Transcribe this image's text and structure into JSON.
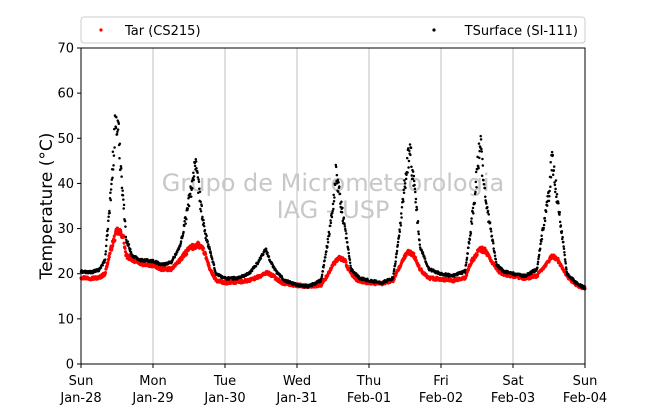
{
  "chart_data": {
    "type": "scatter",
    "title": "",
    "xlabel": "",
    "ylabel": "Temperature (°C)",
    "ylim": [
      0,
      70
    ],
    "yticks": [
      0,
      10,
      20,
      30,
      40,
      50,
      60,
      70
    ],
    "xlim": [
      "2018-01-28 00:00",
      "2018-02-04 00:00"
    ],
    "xticks": [
      {
        "weekday": "Sun",
        "date": "Jan-28"
      },
      {
        "weekday": "Mon",
        "date": "Jan-29"
      },
      {
        "weekday": "Tue",
        "date": "Jan-30"
      },
      {
        "weekday": "Wed",
        "date": "Jan-31"
      },
      {
        "weekday": "Thu",
        "date": "Feb-01"
      },
      {
        "weekday": "Fri",
        "date": "Feb-02"
      },
      {
        "weekday": "Sat",
        "date": "Feb-03"
      },
      {
        "weekday": "Sun",
        "date": "Feb-04"
      }
    ],
    "grid": "vertical",
    "legend_position": "top",
    "watermark": [
      "Grupo de Micrometeorologia",
      "IAG - USP"
    ],
    "series": [
      {
        "name": "Tar (CS215)",
        "color": "#ff0000",
        "points": [
          [
            "2018-01-28 00:00",
            19.2
          ],
          [
            "2018-01-28 03:00",
            19.0
          ],
          [
            "2018-01-28 06:00",
            19.1
          ],
          [
            "2018-01-28 08:00",
            20.0
          ],
          [
            "2018-01-28 10:00",
            25.5
          ],
          [
            "2018-01-28 12:00",
            29.5
          ],
          [
            "2018-01-28 14:00",
            28.5
          ],
          [
            "2018-01-28 15:00",
            24.0
          ],
          [
            "2018-01-28 18:00",
            22.8
          ],
          [
            "2018-01-28 21:00",
            22.0
          ],
          [
            "2018-01-29 00:00",
            21.8
          ],
          [
            "2018-01-29 03:00",
            21.0
          ],
          [
            "2018-01-29 06:00",
            21.0
          ],
          [
            "2018-01-29 09:00",
            23.0
          ],
          [
            "2018-01-29 12:00",
            25.5
          ],
          [
            "2018-01-29 15:00",
            26.5
          ],
          [
            "2018-01-29 17:00",
            25.0
          ],
          [
            "2018-01-29 19:00",
            21.0
          ],
          [
            "2018-01-29 21:00",
            18.5
          ],
          [
            "2018-01-30 00:00",
            18.0
          ],
          [
            "2018-01-30 04:00",
            18.2
          ],
          [
            "2018-01-30 08:00",
            18.5
          ],
          [
            "2018-01-30 12:00",
            19.5
          ],
          [
            "2018-01-30 14:00",
            20.3
          ],
          [
            "2018-01-30 16:00",
            19.5
          ],
          [
            "2018-01-30 19:00",
            18.0
          ],
          [
            "2018-01-30 23:00",
            17.5
          ],
          [
            "2018-01-31 04:00",
            17.2
          ],
          [
            "2018-01-31 08:00",
            17.5
          ],
          [
            "2018-01-31 10:00",
            19.5
          ],
          [
            "2018-01-31 12:00",
            22.0
          ],
          [
            "2018-01-31 14:00",
            23.5
          ],
          [
            "2018-01-31 16:00",
            23.0
          ],
          [
            "2018-01-31 17:00",
            21.0
          ],
          [
            "2018-01-31 20:00",
            18.5
          ],
          [
            "2018-02-01 00:00",
            18.0
          ],
          [
            "2018-02-01 04:00",
            17.8
          ],
          [
            "2018-02-01 08:00",
            18.5
          ],
          [
            "2018-02-01 11:00",
            22.5
          ],
          [
            "2018-02-01 13:00",
            25.0
          ],
          [
            "2018-02-01 15:00",
            24.0
          ],
          [
            "2018-02-01 17:00",
            21.0
          ],
          [
            "2018-02-01 20:00",
            19.0
          ],
          [
            "2018-02-02 00:00",
            18.8
          ],
          [
            "2018-02-02 04:00",
            18.5
          ],
          [
            "2018-02-02 08:00",
            19.0
          ],
          [
            "2018-02-02 10:00",
            22.5
          ],
          [
            "2018-02-02 13:00",
            25.5
          ],
          [
            "2018-02-02 15:00",
            25.0
          ],
          [
            "2018-02-02 17:00",
            22.5
          ],
          [
            "2018-02-02 20:00",
            20.0
          ],
          [
            "2018-02-03 00:00",
            19.5
          ],
          [
            "2018-02-03 04:00",
            19.0
          ],
          [
            "2018-02-03 08:00",
            19.5
          ],
          [
            "2018-02-03 11:00",
            22.0
          ],
          [
            "2018-02-03 13:00",
            24.0
          ],
          [
            "2018-02-03 15:00",
            23.0
          ],
          [
            "2018-02-03 18:00",
            19.5
          ],
          [
            "2018-02-03 21:00",
            17.5
          ],
          [
            "2018-02-04 00:00",
            16.8
          ]
        ]
      },
      {
        "name": "TSurface (SI-111)",
        "color": "#000000",
        "points": [
          [
            "2018-01-28 00:00",
            20.5
          ],
          [
            "2018-01-28 03:00",
            20.3
          ],
          [
            "2018-01-28 06:00",
            20.8
          ],
          [
            "2018-01-28 08:00",
            23.0
          ],
          [
            "2018-01-28 10:00",
            38.0
          ],
          [
            "2018-01-28 11:30",
            54.0
          ],
          [
            "2018-01-28 12:30",
            51.0
          ],
          [
            "2018-01-28 13:30",
            42.0
          ],
          [
            "2018-01-28 15:00",
            28.0
          ],
          [
            "2018-01-28 17:00",
            24.0
          ],
          [
            "2018-01-28 20:00",
            23.0
          ],
          [
            "2018-01-29 00:00",
            22.8
          ],
          [
            "2018-01-29 03:00",
            22.0
          ],
          [
            "2018-01-29 06:00",
            22.5
          ],
          [
            "2018-01-29 09:00",
            26.0
          ],
          [
            "2018-01-29 12:00",
            36.0
          ],
          [
            "2018-01-29 14:00",
            44.0
          ],
          [
            "2018-01-29 15:00",
            40.0
          ],
          [
            "2018-01-29 17:00",
            30.0
          ],
          [
            "2018-01-29 19:00",
            25.0
          ],
          [
            "2018-01-29 21:00",
            20.0
          ],
          [
            "2018-01-30 00:00",
            19.0
          ],
          [
            "2018-01-30 04:00",
            19.0
          ],
          [
            "2018-01-30 08:00",
            20.0
          ],
          [
            "2018-01-30 11:00",
            22.5
          ],
          [
            "2018-01-30 13:30",
            25.5
          ],
          [
            "2018-01-30 15:00",
            23.0
          ],
          [
            "2018-01-30 17:00",
            20.5
          ],
          [
            "2018-01-30 20:00",
            18.5
          ],
          [
            "2018-01-31 00:00",
            17.5
          ],
          [
            "2018-01-31 04:00",
            17.2
          ],
          [
            "2018-01-31 08:00",
            18.5
          ],
          [
            "2018-01-31 10:00",
            26.0
          ],
          [
            "2018-01-31 12:00",
            35.0
          ],
          [
            "2018-01-31 13:00",
            42.5
          ],
          [
            "2018-01-31 15:00",
            34.0
          ],
          [
            "2018-01-31 16:30",
            28.0
          ],
          [
            "2018-01-31 18:00",
            21.0
          ],
          [
            "2018-01-31 21:00",
            19.0
          ],
          [
            "2018-02-01 00:00",
            18.5
          ],
          [
            "2018-02-01 04:00",
            18.0
          ],
          [
            "2018-02-01 08:00",
            19.0
          ],
          [
            "2018-02-01 10:00",
            28.0
          ],
          [
            "2018-02-01 12:00",
            40.0
          ],
          [
            "2018-02-01 13:30",
            48.0
          ],
          [
            "2018-02-01 15:00",
            40.0
          ],
          [
            "2018-02-01 17:00",
            26.0
          ],
          [
            "2018-02-01 20:00",
            21.0
          ],
          [
            "2018-02-02 00:00",
            20.0
          ],
          [
            "2018-02-02 04:00",
            19.5
          ],
          [
            "2018-02-02 08:00",
            20.5
          ],
          [
            "2018-02-02 10:00",
            30.0
          ],
          [
            "2018-02-02 12:00",
            42.0
          ],
          [
            "2018-02-02 13:00",
            50.0
          ],
          [
            "2018-02-02 14:30",
            38.0
          ],
          [
            "2018-02-02 16:30",
            30.0
          ],
          [
            "2018-02-02 18:30",
            22.0
          ],
          [
            "2018-02-02 21:00",
            20.5
          ],
          [
            "2018-02-03 00:00",
            20.0
          ],
          [
            "2018-02-03 04:00",
            19.5
          ],
          [
            "2018-02-03 08:00",
            21.0
          ],
          [
            "2018-02-03 10:00",
            30.0
          ],
          [
            "2018-02-03 12:00",
            38.0
          ],
          [
            "2018-02-03 13:00",
            45.5
          ],
          [
            "2018-02-03 14:30",
            38.0
          ],
          [
            "2018-02-03 16:30",
            28.0
          ],
          [
            "2018-02-03 18:00",
            20.0
          ],
          [
            "2018-02-03 21:00",
            18.0
          ],
          [
            "2018-02-04 00:00",
            16.8
          ]
        ]
      }
    ]
  }
}
